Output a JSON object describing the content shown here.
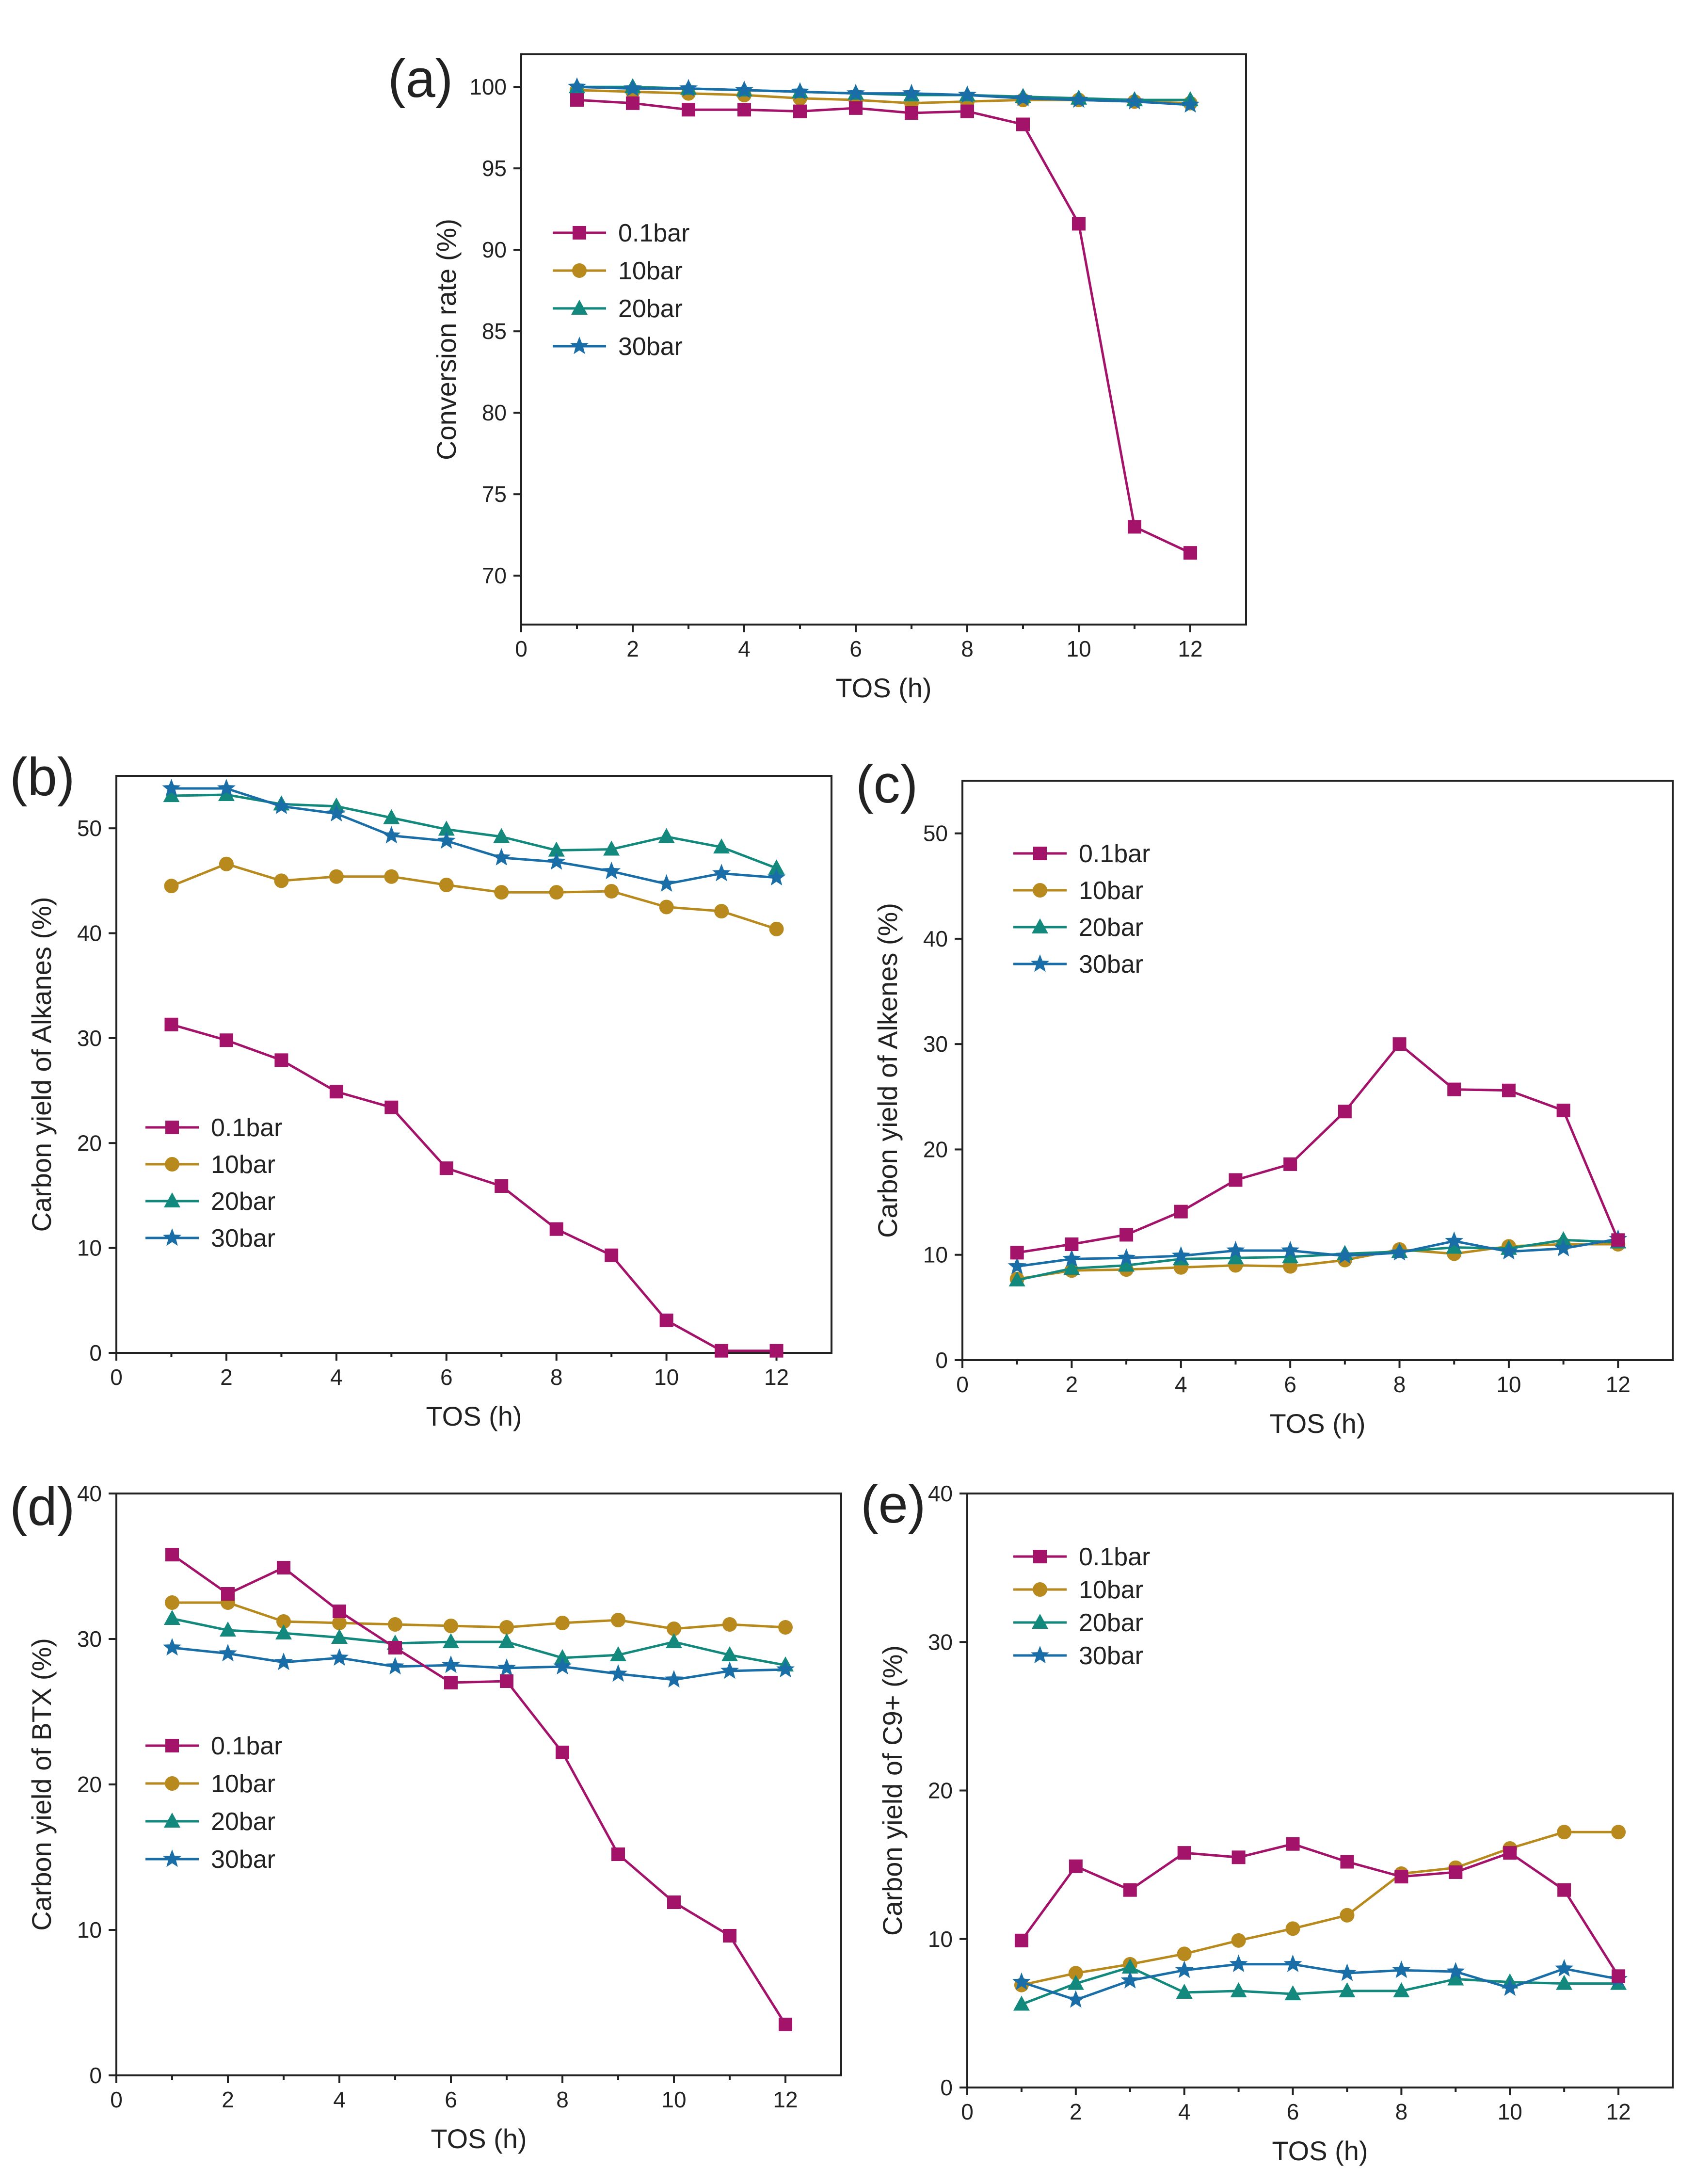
{
  "figure": {
    "colors": {
      "0.1bar": "#a3136a",
      "10bar": "#b88a1e",
      "20bar": "#12897c",
      "30bar": "#1a6ea8"
    }
  },
  "chart_data": [
    {
      "panel": "(a)",
      "type": "line",
      "xlabel": "TOS (h)",
      "ylabel": "Conversion rate (%)",
      "xlim": [
        0,
        13
      ],
      "ylim": [
        67,
        102
      ],
      "xticks": [
        0,
        2,
        4,
        6,
        8,
        10,
        12
      ],
      "yticks": [
        70,
        75,
        80,
        85,
        90,
        95,
        100
      ],
      "legend_position": "center-left",
      "x": [
        1,
        2,
        3,
        4,
        5,
        6,
        7,
        8,
        9,
        10,
        11,
        12
      ],
      "series": [
        {
          "name": "0.1bar",
          "marker": "square",
          "values": [
            99.2,
            99.0,
            98.6,
            98.6,
            98.5,
            98.7,
            98.4,
            98.5,
            97.7,
            91.6,
            73.0,
            71.4
          ]
        },
        {
          "name": "10bar",
          "marker": "circle",
          "values": [
            99.8,
            99.7,
            99.6,
            99.5,
            99.3,
            99.2,
            99.0,
            99.1,
            99.2,
            99.2,
            99.1,
            99.0
          ]
        },
        {
          "name": "20bar",
          "marker": "triangle",
          "values": [
            100.0,
            100.0,
            99.9,
            99.8,
            99.7,
            99.6,
            99.5,
            99.5,
            99.4,
            99.3,
            99.2,
            99.2
          ]
        },
        {
          "name": "30bar",
          "marker": "star",
          "values": [
            100.0,
            99.9,
            99.9,
            99.8,
            99.7,
            99.6,
            99.6,
            99.5,
            99.3,
            99.2,
            99.1,
            98.9
          ]
        }
      ]
    },
    {
      "panel": "(b)",
      "type": "line",
      "xlabel": "TOS (h)",
      "ylabel": "Carbon yield of Alkanes (%)",
      "xlim": [
        0,
        13
      ],
      "ylim": [
        0,
        55
      ],
      "xticks": [
        0,
        2,
        4,
        6,
        8,
        10,
        12
      ],
      "yticks": [
        0,
        10,
        20,
        30,
        40,
        50
      ],
      "legend_position": "bottom-left",
      "x": [
        1,
        2,
        3,
        4,
        5,
        6,
        7,
        8,
        9,
        10,
        11,
        12
      ],
      "series": [
        {
          "name": "0.1bar",
          "marker": "square",
          "values": [
            31.3,
            29.8,
            27.9,
            24.9,
            23.4,
            17.6,
            15.9,
            11.8,
            9.3,
            3.1,
            0.2,
            0.2
          ]
        },
        {
          "name": "10bar",
          "marker": "circle",
          "values": [
            44.5,
            46.6,
            45.0,
            45.4,
            45.4,
            44.6,
            43.9,
            43.9,
            44.0,
            42.5,
            42.1,
            40.4
          ]
        },
        {
          "name": "20bar",
          "marker": "triangle",
          "values": [
            53.1,
            53.2,
            52.3,
            52.1,
            51.0,
            49.9,
            49.2,
            47.9,
            48.0,
            49.2,
            48.2,
            46.2
          ]
        },
        {
          "name": "30bar",
          "marker": "star",
          "values": [
            53.8,
            53.8,
            52.1,
            51.4,
            49.3,
            48.8,
            47.2,
            46.8,
            45.9,
            44.7,
            45.7,
            45.3
          ]
        }
      ]
    },
    {
      "panel": "(c)",
      "type": "line",
      "xlabel": "TOS (h)",
      "ylabel": "Carbon yield of Alkenes (%)",
      "xlim": [
        0,
        13
      ],
      "ylim": [
        0,
        55
      ],
      "xticks": [
        0,
        2,
        4,
        6,
        8,
        10,
        12
      ],
      "yticks": [
        0,
        10,
        20,
        30,
        40,
        50
      ],
      "legend_position": "top-left",
      "x": [
        1,
        2,
        3,
        4,
        5,
        6,
        7,
        8,
        9,
        10,
        11,
        12
      ],
      "series": [
        {
          "name": "0.1bar",
          "marker": "square",
          "values": [
            10.2,
            11.0,
            11.9,
            14.1,
            17.1,
            18.6,
            23.6,
            30.0,
            25.7,
            25.6,
            23.7,
            11.4
          ]
        },
        {
          "name": "10bar",
          "marker": "circle",
          "values": [
            7.7,
            8.5,
            8.6,
            8.8,
            9.0,
            8.9,
            9.5,
            10.5,
            10.1,
            10.8,
            11.0,
            11.0
          ]
        },
        {
          "name": "20bar",
          "marker": "triangle",
          "values": [
            7.6,
            8.7,
            9.0,
            9.6,
            9.7,
            9.8,
            10.1,
            10.3,
            10.7,
            10.6,
            11.4,
            11.2
          ]
        },
        {
          "name": "30bar",
          "marker": "star",
          "values": [
            8.9,
            9.6,
            9.7,
            9.9,
            10.4,
            10.4,
            9.9,
            10.2,
            11.3,
            10.3,
            10.6,
            11.5
          ]
        }
      ]
    },
    {
      "panel": "(d)",
      "type": "line",
      "xlabel": "TOS (h)",
      "ylabel": "Carbon yield of BTX (%)",
      "xlim": [
        0,
        13
      ],
      "ylim": [
        0,
        40
      ],
      "xticks": [
        0,
        2,
        4,
        6,
        8,
        10,
        12
      ],
      "yticks": [
        0,
        10,
        20,
        30,
        40
      ],
      "legend_position": "center-left",
      "x": [
        1,
        2,
        3,
        4,
        5,
        6,
        7,
        8,
        9,
        10,
        11,
        12
      ],
      "series": [
        {
          "name": "0.1bar",
          "marker": "square",
          "values": [
            35.8,
            33.1,
            34.9,
            31.9,
            29.4,
            27.0,
            27.1,
            22.2,
            15.2,
            11.9,
            9.6,
            3.5
          ]
        },
        {
          "name": "10bar",
          "marker": "circle",
          "values": [
            32.5,
            32.5,
            31.2,
            31.1,
            31.0,
            30.9,
            30.8,
            31.1,
            31.3,
            30.7,
            31.0,
            30.8
          ]
        },
        {
          "name": "20bar",
          "marker": "triangle",
          "values": [
            31.4,
            30.6,
            30.4,
            30.1,
            29.7,
            29.8,
            29.8,
            28.7,
            28.9,
            29.8,
            28.9,
            28.2
          ]
        },
        {
          "name": "30bar",
          "marker": "star",
          "values": [
            29.4,
            29.0,
            28.4,
            28.7,
            28.1,
            28.2,
            28.0,
            28.1,
            27.6,
            27.2,
            27.8,
            27.9
          ]
        }
      ]
    },
    {
      "panel": "(e)",
      "type": "line",
      "xlabel": "TOS (h)",
      "ylabel": "Carbon yield of C9+ (%)",
      "xlim": [
        0,
        13
      ],
      "ylim": [
        0,
        40
      ],
      "xticks": [
        0,
        2,
        4,
        6,
        8,
        10,
        12
      ],
      "yticks": [
        0,
        10,
        20,
        30,
        40
      ],
      "legend_position": "top-left",
      "x": [
        1,
        2,
        3,
        4,
        5,
        6,
        7,
        8,
        9,
        10,
        11,
        12
      ],
      "series": [
        {
          "name": "0.1bar",
          "marker": "square",
          "values": [
            9.9,
            14.9,
            13.3,
            15.8,
            15.5,
            16.4,
            15.2,
            14.2,
            14.5,
            15.8,
            13.3,
            7.5
          ]
        },
        {
          "name": "10bar",
          "marker": "circle",
          "values": [
            6.9,
            7.7,
            8.3,
            9.0,
            9.9,
            10.7,
            11.6,
            14.4,
            14.8,
            16.1,
            17.2,
            17.2
          ]
        },
        {
          "name": "20bar",
          "marker": "triangle",
          "values": [
            5.6,
            7.0,
            8.1,
            6.4,
            6.5,
            6.3,
            6.5,
            6.5,
            7.3,
            7.1,
            7.0,
            7.0
          ]
        },
        {
          "name": "30bar",
          "marker": "star",
          "values": [
            7.1,
            5.9,
            7.2,
            7.9,
            8.3,
            8.3,
            7.7,
            7.9,
            7.8,
            6.7,
            8.0,
            7.3
          ]
        }
      ]
    }
  ]
}
